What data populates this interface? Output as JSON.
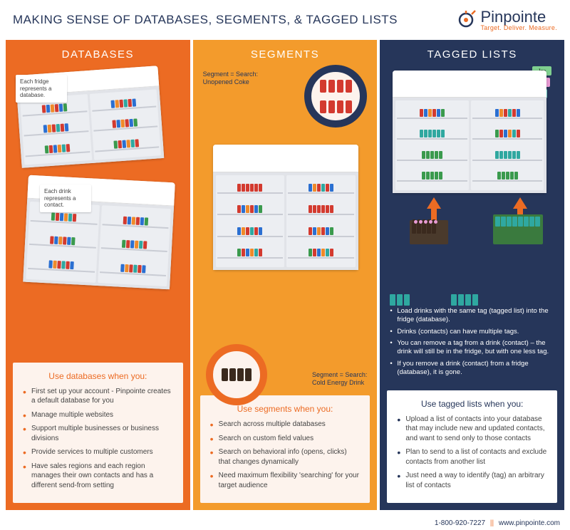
{
  "header": {
    "title": "MAKING SENSE OF DATABASES, SEGMENTS, & TAGGED LISTS",
    "brand": "Pinpointe",
    "tagline": "Target. Deliver. Measure."
  },
  "colors": {
    "col_db_bg": "#ec6b23",
    "col_seg_bg": "#f39b2c",
    "col_tag_bg": "#26365a",
    "accent_orange": "#ec6b23",
    "accent_navy": "#26365a",
    "info_bg": "#fdf3ed",
    "can_red": "#d33a2f",
    "can_blue": "#2b6fd1",
    "can_orange": "#f08a2a",
    "can_green": "#3a9a4d",
    "can_teal": "#2fa8a0",
    "can_dark": "#3a2a1e",
    "tag_green": "#7fcf8f",
    "tag_pink": "#e89ad4",
    "tag_teal": "#6fd0c8"
  },
  "columns": {
    "databases": {
      "heading": "DATABASES",
      "note1": "Each fridge represents a database.",
      "note2": "Each drink represents a contact.",
      "box_title": "Use databases when you:",
      "bullets": [
        "First set up your account - Pinpointe creates a default database for you",
        "Manage multiple websites",
        "Support multiple businesses or business divisions",
        "Provide services to multiple customers",
        "Have sales regions and each region manages their own contacts and has a different send-from setting"
      ]
    },
    "segments": {
      "heading": "SEGMENTS",
      "mag1_label": "Segment = Search:\nUnopened Coke",
      "mag2_label": "Segment = Search:\nCold Energy Drink",
      "box_title": "Use segments when you:",
      "bullets": [
        "Search across multiple databases",
        "Search on custom field values",
        "Search on behavioral info (opens, clicks) that changes dynamically",
        "Need maximum flexibility 'searching' for your target audience"
      ]
    },
    "tagged": {
      "heading": "TAGGED LISTS",
      "tagnames": [
        "Joe",
        "LISA",
        "Pat"
      ],
      "white_bullets": [
        "Load drinks with the same tag (tagged list) into the fridge (database).",
        "Drinks (contacts) can have multiple tags.",
        "You can remove a tag from a drink (contact) – the drink will still be in the fridge, but with one less tag.",
        "If you remove a drink (contact) from a fridge (database), it is gone."
      ],
      "box_title": "Use tagged lists when you:",
      "bullets": [
        "Upload a list of contacts into your database that may include new and updated contacts, and want to send only to those contacts",
        "Plan to send to a list of contacts and exclude contacts from another list",
        "Just need a way to identify (tag) an arbitrary list of contacts"
      ]
    }
  },
  "footer": {
    "phone": "1-800-920-7227",
    "url": "www.pinpointe.com"
  },
  "shelf_patterns": {
    "mixed1": [
      "can_red",
      "can_blue",
      "can_orange",
      "can_red",
      "can_blue",
      "can_green"
    ],
    "mixed2": [
      "can_blue",
      "can_orange",
      "can_red",
      "can_teal",
      "can_red",
      "can_blue"
    ],
    "mixed3": [
      "can_green",
      "can_red",
      "can_blue",
      "can_orange",
      "can_teal",
      "can_red"
    ],
    "reds": [
      "can_red",
      "can_red",
      "can_red",
      "can_red",
      "can_red",
      "can_red"
    ],
    "dark": [
      "can_dark",
      "can_dark",
      "can_dark",
      "can_dark"
    ],
    "green": [
      "can_green",
      "can_green",
      "can_green",
      "can_green",
      "can_green"
    ],
    "teal": [
      "can_teal",
      "can_teal",
      "can_teal",
      "can_teal",
      "can_teal",
      "can_teal"
    ]
  }
}
